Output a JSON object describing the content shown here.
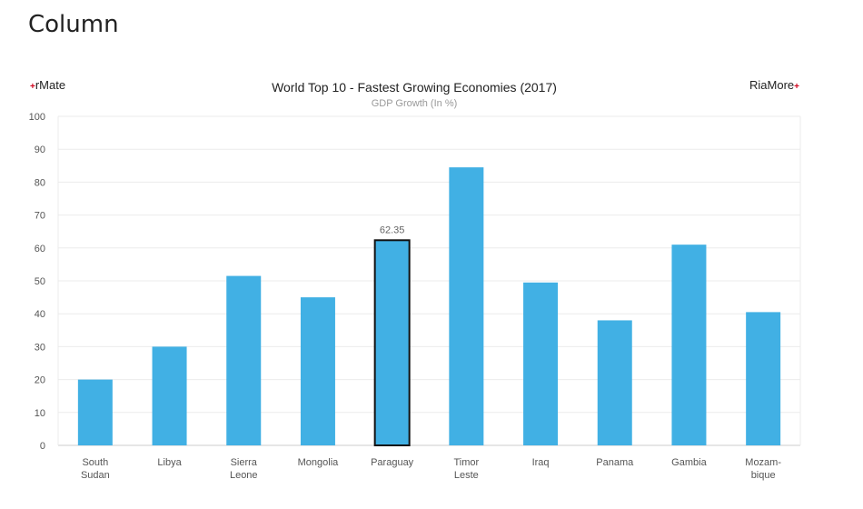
{
  "page": {
    "title": "Column"
  },
  "brands": {
    "left": {
      "mark": "+",
      "text": "rMate"
    },
    "right": {
      "text": "RiaMore",
      "mark": "+"
    }
  },
  "colors": {
    "bar": "#41b0e4",
    "selected_outline": "#111111",
    "grid": "#ebebeb",
    "brand_mark": "#d0021b"
  },
  "chart_data": {
    "type": "bar",
    "title": "World Top 10 - Fastest Growing Economies (2017)",
    "subtitle": "GDP Growth (In %)",
    "xlabel": "",
    "ylabel": "",
    "ylim": [
      0,
      100
    ],
    "yticks": [
      "0",
      "10",
      "20",
      "30",
      "40",
      "50",
      "60",
      "70",
      "80",
      "90",
      "100"
    ],
    "grid": true,
    "categories": [
      [
        "South",
        "Sudan"
      ],
      [
        "Libya"
      ],
      [
        "Sierra",
        "Leone"
      ],
      [
        "Mongolia"
      ],
      [
        "Paraguay"
      ],
      [
        "Timor",
        "Leste"
      ],
      [
        "Iraq"
      ],
      [
        "Panama"
      ],
      [
        "Gambia"
      ],
      [
        "Mozam-",
        "bique"
      ]
    ],
    "values": [
      20,
      30,
      51.5,
      45,
      62.35,
      84.5,
      49.5,
      38,
      61,
      40.5
    ],
    "selected": {
      "category": "Paraguay",
      "label": "62.35"
    }
  }
}
